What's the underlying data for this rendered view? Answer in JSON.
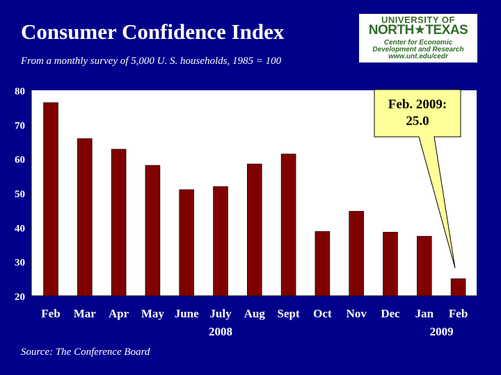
{
  "title": "Consumer Confidence Index",
  "subtitle": "From a monthly survey of 5,000 U. S. households, 1985 = 100",
  "source": "Source: The Conference Board",
  "logo": {
    "university_of": "UNIVERSITY OF",
    "north_texas": "NORTH★TEXAS",
    "line1": "Center for Economic",
    "line2": "Development and Research",
    "url": "www.unt.edu/cedr"
  },
  "callout": {
    "line1": "Feb. 2009:",
    "line2": "25.0"
  },
  "colors": {
    "background": "#00008b",
    "plot_area": "#ffffff",
    "bar": "#800000",
    "callout": "#ffff99"
  },
  "chart_data": {
    "type": "bar",
    "title": "Consumer Confidence Index",
    "xlabel": "",
    "ylabel": "",
    "categories": [
      "Feb",
      "Mar",
      "Apr",
      "May",
      "June",
      "July",
      "Aug",
      "Sept",
      "Oct",
      "Nov",
      "Dec",
      "Jan",
      "Feb"
    ],
    "values": [
      76.4,
      65.9,
      62.8,
      58.1,
      51.0,
      51.9,
      58.5,
      61.4,
      38.8,
      44.7,
      38.6,
      37.4,
      25.0
    ],
    "year_labels": [
      {
        "label": "2008",
        "category_index": 5
      },
      {
        "label": "2009",
        "category_index": 12
      }
    ],
    "yticks": [
      20,
      30,
      40,
      50,
      60,
      70,
      80
    ],
    "ylim": [
      20,
      80
    ],
    "grid": false,
    "annotation": {
      "text": "Feb. 2009: 25.0",
      "category_index": 12
    }
  }
}
